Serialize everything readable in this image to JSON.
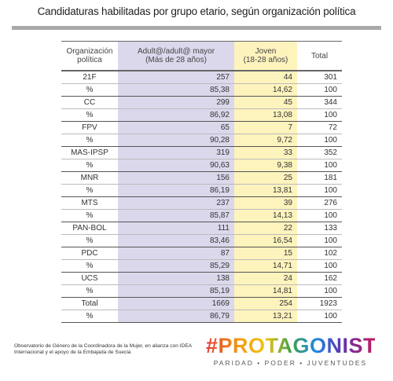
{
  "header": {
    "title": "Candidaturas habilitadas por grupo etario, según organización política"
  },
  "table": {
    "columns": [
      "Organización\npolítica",
      "Adult@/adult@ mayor\n(Más de 28 años)",
      "Joven\n(18-28 años)",
      "Total"
    ],
    "rows": [
      [
        "21F",
        "257",
        "44",
        "301"
      ],
      [
        "%",
        "85,38",
        "14,62",
        "100"
      ],
      [
        "CC",
        "299",
        "45",
        "344"
      ],
      [
        "%",
        "86,92",
        "13,08",
        "100"
      ],
      [
        "FPV",
        "65",
        "7",
        "72"
      ],
      [
        "%",
        "90,28",
        "9,72",
        "100"
      ],
      [
        "MAS-IPSP",
        "319",
        "33",
        "352"
      ],
      [
        "%",
        "90,63",
        "9,38",
        "100"
      ],
      [
        "MNR",
        "156",
        "25",
        "181"
      ],
      [
        "%",
        "86,19",
        "13,81",
        "100"
      ],
      [
        "MTS",
        "237",
        "39",
        "276"
      ],
      [
        "%",
        "85,87",
        "14,13",
        "100"
      ],
      [
        "PAN-BOL",
        "111",
        "22",
        "133"
      ],
      [
        "%",
        "83,46",
        "16,54",
        "100"
      ],
      [
        "PDC",
        "87",
        "15",
        "102"
      ],
      [
        "%",
        "85,29",
        "14,71",
        "100"
      ],
      [
        "UCS",
        "138",
        "24",
        "162"
      ],
      [
        "%",
        "85,19",
        "14,81",
        "100"
      ],
      [
        "Total",
        "1669",
        "254",
        "1923"
      ],
      [
        "%",
        "86,79",
        "13,21",
        "100"
      ]
    ]
  },
  "footer": {
    "credit": "Observatorio de Género de la Coordinadora de la Mujer, en alianza con IDEA Internacional y el apoyo de la Embajada de Suecia",
    "logo": "#PROTAGONISTAS",
    "tagline": "PARIDAD • PODER • JUVENTUDES"
  }
}
